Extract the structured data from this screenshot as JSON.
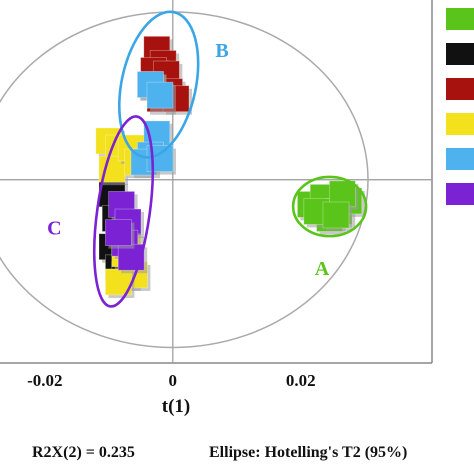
{
  "chart_data": {
    "type": "scatter",
    "xlabel": "t(1)",
    "x_ticks": [
      "-0.02",
      "0",
      "0.02"
    ],
    "x_tick_values": [
      -0.02,
      0,
      0.02
    ],
    "xlim": [
      -0.027,
      0.0405
    ],
    "ylim": [
      -0.026,
      0.0255
    ],
    "footer_r2x": "R2X(2) = 0.235",
    "footer_ellipse": "Ellipse: Hotelling's T2 (95%)",
    "hotelling_ellipse": {
      "cx": 0.0,
      "cy": 0.0,
      "rx": 0.0305,
      "ry": 0.0238
    },
    "legend_colors": [
      "#5ac41a",
      "#111111",
      "#a8120e",
      "#f4e11e",
      "#4db2ee",
      "#7b22d4"
    ],
    "series": [
      {
        "color": "#5ac41a",
        "points": [
          [
            0.0215,
            -0.0035
          ],
          [
            0.0235,
            -0.0025
          ],
          [
            0.026,
            -0.0045
          ],
          [
            0.0275,
            -0.003
          ],
          [
            0.0245,
            -0.0055
          ],
          [
            0.0225,
            -0.0045
          ],
          [
            0.0265,
            -0.002
          ],
          [
            0.0255,
            -0.005
          ]
        ]
      },
      {
        "color": "#111111",
        "points": [
          [
            -0.0095,
            -0.002
          ],
          [
            -0.009,
            -0.0055
          ],
          [
            -0.0095,
            -0.0095
          ],
          [
            -0.0085,
            -0.0125
          ],
          [
            -0.0075,
            -0.0135
          ]
        ]
      },
      {
        "color": "#a8120e",
        "points": [
          [
            -0.0025,
            0.0185
          ],
          [
            -0.0015,
            0.0165
          ],
          [
            -0.003,
            0.0155
          ],
          [
            -0.001,
            0.015
          ],
          [
            -0.0005,
            0.0125
          ],
          [
            -0.0035,
            0.0135
          ],
          [
            -0.002,
            0.0115
          ],
          [
            0.0005,
            0.0115
          ]
        ]
      },
      {
        "color": "#f4e11e",
        "points": [
          [
            -0.01,
            0.0055
          ],
          [
            -0.0085,
            0.0045
          ],
          [
            -0.0095,
            0.0015
          ],
          [
            -0.0065,
            0.0045
          ],
          [
            -0.0055,
            0.0025
          ],
          [
            -0.0075,
            -0.0105
          ],
          [
            -0.006,
            -0.0135
          ],
          [
            -0.0085,
            -0.0145
          ],
          [
            -0.007,
            -0.0095
          ]
        ]
      },
      {
        "color": "#4db2ee",
        "points": [
          [
            -0.0035,
            0.0135
          ],
          [
            -0.002,
            0.012
          ],
          [
            -0.0025,
            0.0065
          ],
          [
            -0.0035,
            0.0035
          ],
          [
            -0.0045,
            0.0025
          ],
          [
            -0.002,
            0.003
          ]
        ]
      },
      {
        "color": "#7b22d4",
        "points": [
          [
            -0.008,
            -0.0035
          ],
          [
            -0.007,
            -0.006
          ],
          [
            -0.0075,
            -0.009
          ],
          [
            -0.0065,
            -0.011
          ],
          [
            -0.0085,
            -0.0075
          ]
        ]
      }
    ],
    "group_ellipses": [
      {
        "label": "A",
        "color": "#5ac41a",
        "cx": 0.0245,
        "cy": -0.0038,
        "rx": 0.0057,
        "ry": 0.0042,
        "rot": 0,
        "label_at": [
          0.0233,
          -0.0135
        ]
      },
      {
        "label": "B",
        "color": "#3aa6e6",
        "cx": -0.0022,
        "cy": 0.0135,
        "rx": 0.0058,
        "ry": 0.0105,
        "rot": 12,
        "label_at": [
          0.0077,
          0.0174
        ]
      },
      {
        "label": "C",
        "color": "#7b22d4",
        "cx": -0.0077,
        "cy": -0.0045,
        "rx": 0.0041,
        "ry": 0.0136,
        "rot": 8,
        "label_at": [
          -0.0185,
          -0.0078
        ]
      }
    ]
  }
}
